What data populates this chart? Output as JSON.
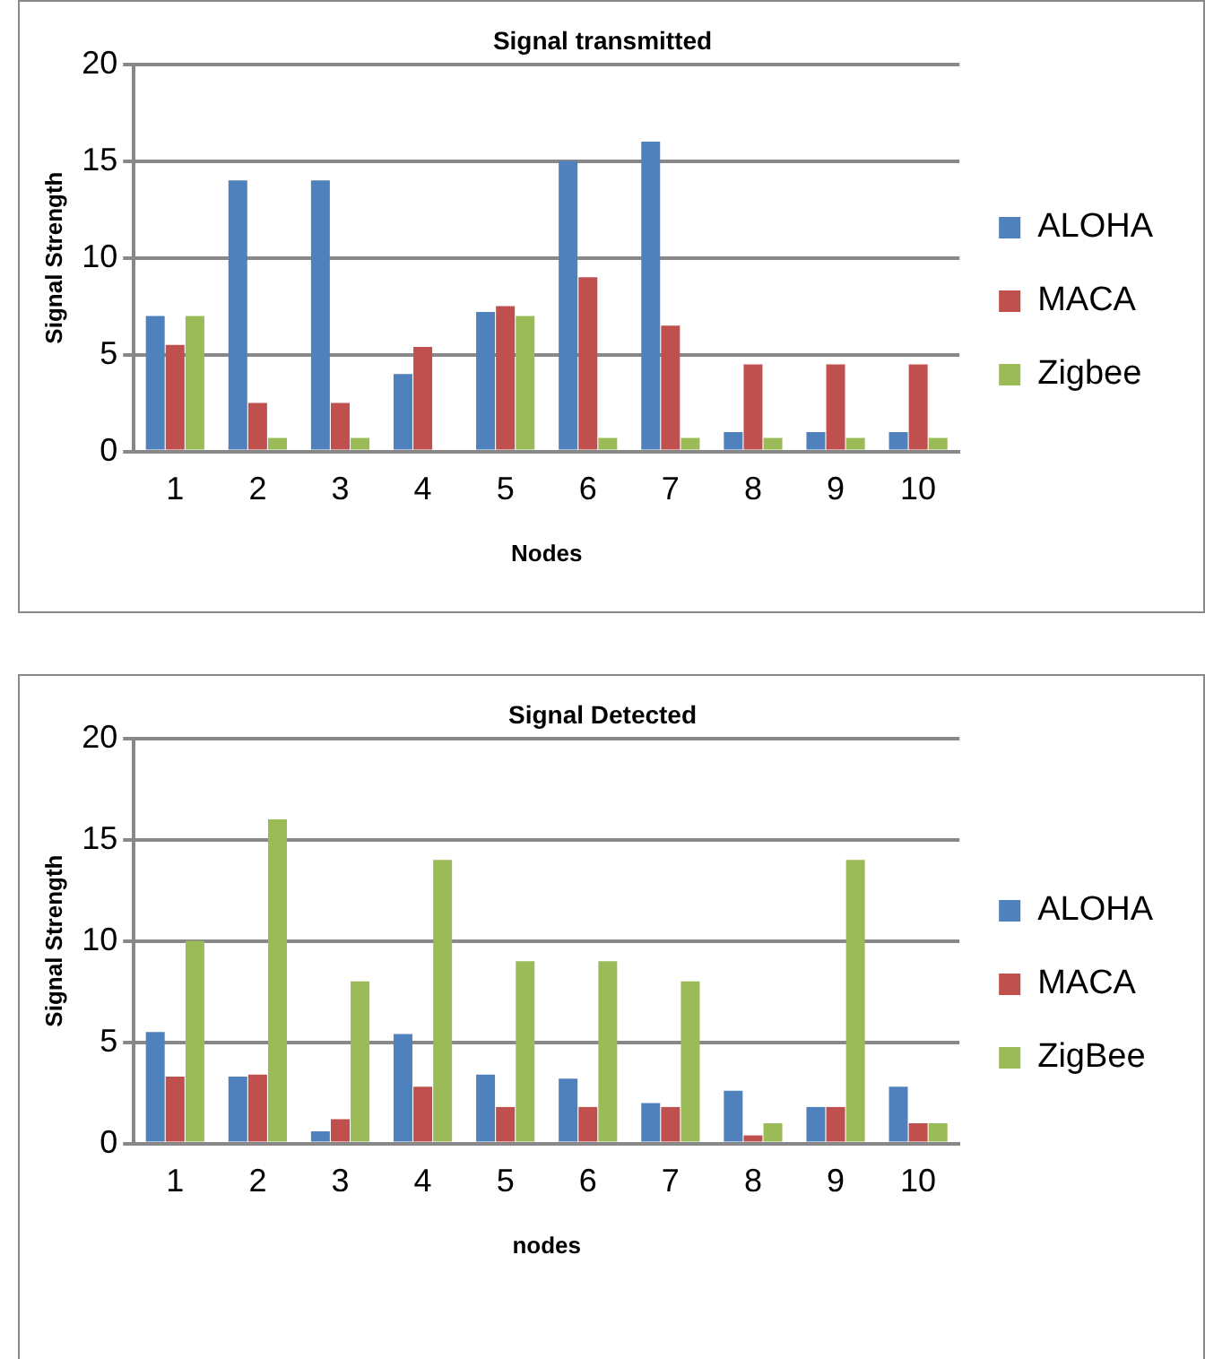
{
  "chart_data": [
    {
      "type": "bar",
      "title": "Signal transmitted",
      "xlabel": "Nodes",
      "ylabel": "Signal Strength",
      "categories": [
        "1",
        "2",
        "3",
        "4",
        "5",
        "6",
        "7",
        "8",
        "9",
        "10"
      ],
      "series": [
        {
          "name": "ALOHA",
          "color": "#4f81bd",
          "values": [
            7,
            14,
            14,
            4,
            7.2,
            15,
            16,
            1,
            1,
            1
          ]
        },
        {
          "name": "MACA",
          "color": "#c0504d",
          "values": [
            5.5,
            2.5,
            2.5,
            5.4,
            7.5,
            9,
            6.5,
            4.5,
            4.5,
            4.5
          ]
        },
        {
          "name": "Zigbee",
          "color": "#9bbb59",
          "values": [
            7,
            0.7,
            0.7,
            0,
            7,
            0.7,
            0.7,
            0.7,
            0.7,
            0.7
          ]
        }
      ],
      "ylim": [
        0,
        20
      ],
      "yticks": [
        0,
        5,
        10,
        15,
        20
      ],
      "grid": "y",
      "legend": "right"
    },
    {
      "type": "bar",
      "title": "Signal Detected",
      "xlabel": "nodes",
      "ylabel": "Signal Strength",
      "categories": [
        "1",
        "2",
        "3",
        "4",
        "5",
        "6",
        "7",
        "8",
        "9",
        "10"
      ],
      "series": [
        {
          "name": "ALOHA",
          "color": "#4f81bd",
          "values": [
            5.5,
            3.3,
            0.6,
            5.4,
            3.4,
            3.2,
            2,
            2.6,
            1.8,
            2.8
          ]
        },
        {
          "name": "MACA",
          "color": "#c0504d",
          "values": [
            3.3,
            3.4,
            1.2,
            2.8,
            1.8,
            1.8,
            1.8,
            0.4,
            1.8,
            1
          ]
        },
        {
          "name": "ZigBee",
          "color": "#9bbb59",
          "values": [
            10,
            16,
            8,
            14,
            9,
            9,
            8,
            1,
            14,
            1
          ]
        }
      ],
      "ylim": [
        0,
        20
      ],
      "yticks": [
        0,
        5,
        10,
        15,
        20
      ],
      "grid": "y",
      "legend": "right"
    }
  ]
}
